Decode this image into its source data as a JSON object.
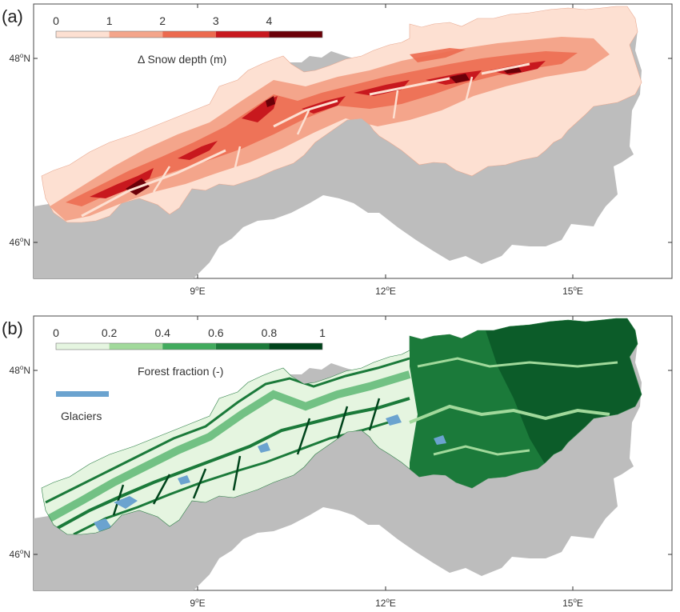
{
  "panels": [
    {
      "label": "(a)",
      "colorbar": {
        "ticks": [
          "0",
          "1",
          "2",
          "3",
          "4"
        ],
        "colors": [
          "#fde0d2",
          "#f4a58b",
          "#ec6a4f",
          "#c8181e",
          "#6b0008"
        ],
        "title": "Δ Snow depth (m)"
      },
      "x_ticks": [
        "9",
        "12",
        "15"
      ],
      "y_ticks": [
        "48",
        "46"
      ],
      "lon_suffix": "E",
      "lat_suffix": "N",
      "deg": "o"
    },
    {
      "label": "(b)",
      "colorbar": {
        "ticks": [
          "0",
          "0.2",
          "0.4",
          "0.6",
          "0.8",
          "1"
        ],
        "colors": [
          "#e5f5e0",
          "#a1d99b",
          "#41ab5d",
          "#1b7a3a",
          "#00441b"
        ],
        "title": "Forest fraction (-)"
      },
      "glacier": {
        "label": "Glaciers",
        "color": "#6ba3cf"
      },
      "x_ticks": [
        "9",
        "12",
        "15"
      ],
      "y_ticks": [
        "48",
        "46"
      ],
      "lon_suffix": "E",
      "lat_suffix": "N",
      "deg": "o"
    }
  ],
  "colors": {
    "region_gray": "#bdbdbd",
    "frame": "#4a4a4a"
  }
}
